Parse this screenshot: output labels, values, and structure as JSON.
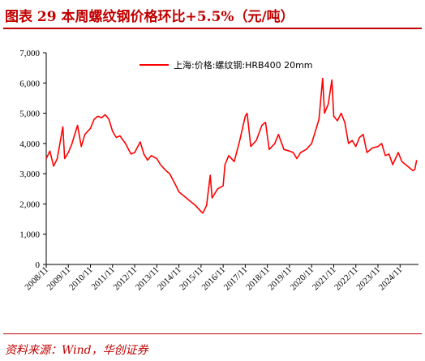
{
  "title": "图表 29   本周螺纹钢价格环比+5.5%（元/吨）",
  "source": "资料来源：Wind，华创证券",
  "colors": {
    "accent": "#c00000",
    "series": "#ff0000"
  },
  "chart_data": {
    "type": "line",
    "title": "本周螺纹钢价格环比+5.5%（元/吨）",
    "xlabel": "",
    "ylabel": "",
    "ylim": [
      0,
      7000
    ],
    "yticks": [
      "0",
      "1,000",
      "2,000",
      "3,000",
      "4,000",
      "5,000",
      "6,000",
      "7,000"
    ],
    "xticks": [
      "2008/11",
      "2009/11",
      "2010/11",
      "2011/11",
      "2012/11",
      "2013/11",
      "2014/11",
      "2015/11",
      "2016/11",
      "2017/11",
      "2018/11",
      "2019/11",
      "2020/11",
      "2021/11",
      "2022/11",
      "2023/11",
      "2024/11"
    ],
    "legend_position": "top-center",
    "grid": false,
    "series": [
      {
        "name": "上海:价格:螺纹钢:HRB400 20mm",
        "color": "#ff0000",
        "points": [
          [
            "2008-11",
            3500
          ],
          [
            "2009-01",
            3750
          ],
          [
            "2009-03",
            3250
          ],
          [
            "2009-05",
            3500
          ],
          [
            "2009-07",
            4200
          ],
          [
            "2009-08",
            4550
          ],
          [
            "2009-09",
            3500
          ],
          [
            "2009-11",
            3700
          ],
          [
            "2010-01",
            4000
          ],
          [
            "2010-04",
            4600
          ],
          [
            "2010-06",
            3900
          ],
          [
            "2010-08",
            4300
          ],
          [
            "2010-11",
            4500
          ],
          [
            "2011-01",
            4800
          ],
          [
            "2011-03",
            4900
          ],
          [
            "2011-05",
            4850
          ],
          [
            "2011-07",
            4950
          ],
          [
            "2011-09",
            4800
          ],
          [
            "2011-11",
            4400
          ],
          [
            "2012-01",
            4200
          ],
          [
            "2012-03",
            4250
          ],
          [
            "2012-06",
            4000
          ],
          [
            "2012-09",
            3650
          ],
          [
            "2012-11",
            3700
          ],
          [
            "2013-02",
            4050
          ],
          [
            "2013-04",
            3650
          ],
          [
            "2013-06",
            3450
          ],
          [
            "2013-08",
            3600
          ],
          [
            "2013-11",
            3500
          ],
          [
            "2014-01",
            3300
          ],
          [
            "2014-04",
            3100
          ],
          [
            "2014-06",
            3000
          ],
          [
            "2014-09",
            2650
          ],
          [
            "2014-11",
            2400
          ],
          [
            "2015-02",
            2250
          ],
          [
            "2015-05",
            2100
          ],
          [
            "2015-08",
            1950
          ],
          [
            "2015-11",
            1750
          ],
          [
            "2015-12",
            1700
          ],
          [
            "2016-02",
            1950
          ],
          [
            "2016-04",
            2950
          ],
          [
            "2016-05",
            2200
          ],
          [
            "2016-08",
            2500
          ],
          [
            "2016-11",
            2600
          ],
          [
            "2016-12",
            3300
          ],
          [
            "2017-02",
            3600
          ],
          [
            "2017-05",
            3400
          ],
          [
            "2017-08",
            4100
          ],
          [
            "2017-11",
            4900
          ],
          [
            "2017-12",
            5000
          ],
          [
            "2018-02",
            3900
          ],
          [
            "2018-05",
            4100
          ],
          [
            "2018-08",
            4600
          ],
          [
            "2018-10",
            4700
          ],
          [
            "2018-12",
            3800
          ],
          [
            "2019-03",
            4000
          ],
          [
            "2019-05",
            4300
          ],
          [
            "2019-08",
            3800
          ],
          [
            "2019-11",
            3750
          ],
          [
            "2020-01",
            3700
          ],
          [
            "2020-03",
            3500
          ],
          [
            "2020-05",
            3700
          ],
          [
            "2020-08",
            3800
          ],
          [
            "2020-11",
            4000
          ],
          [
            "2021-01",
            4400
          ],
          [
            "2021-03",
            4800
          ],
          [
            "2021-05",
            6150
          ],
          [
            "2021-06",
            5000
          ],
          [
            "2021-08",
            5300
          ],
          [
            "2021-10",
            6100
          ],
          [
            "2021-11",
            4900
          ],
          [
            "2022-01",
            4750
          ],
          [
            "2022-03",
            5000
          ],
          [
            "2022-05",
            4700
          ],
          [
            "2022-07",
            4000
          ],
          [
            "2022-09",
            4100
          ],
          [
            "2022-11",
            3900
          ],
          [
            "2023-01",
            4200
          ],
          [
            "2023-03",
            4300
          ],
          [
            "2023-05",
            3700
          ],
          [
            "2023-08",
            3850
          ],
          [
            "2023-11",
            3900
          ],
          [
            "2024-01",
            4000
          ],
          [
            "2024-03",
            3600
          ],
          [
            "2024-05",
            3650
          ],
          [
            "2024-07",
            3300
          ],
          [
            "2024-10",
            3700
          ],
          [
            "2024-12",
            3400
          ],
          [
            "2025-03",
            3250
          ],
          [
            "2025-06",
            3100
          ],
          [
            "2025-07",
            3150
          ],
          [
            "2025-08",
            3450
          ]
        ]
      }
    ]
  }
}
